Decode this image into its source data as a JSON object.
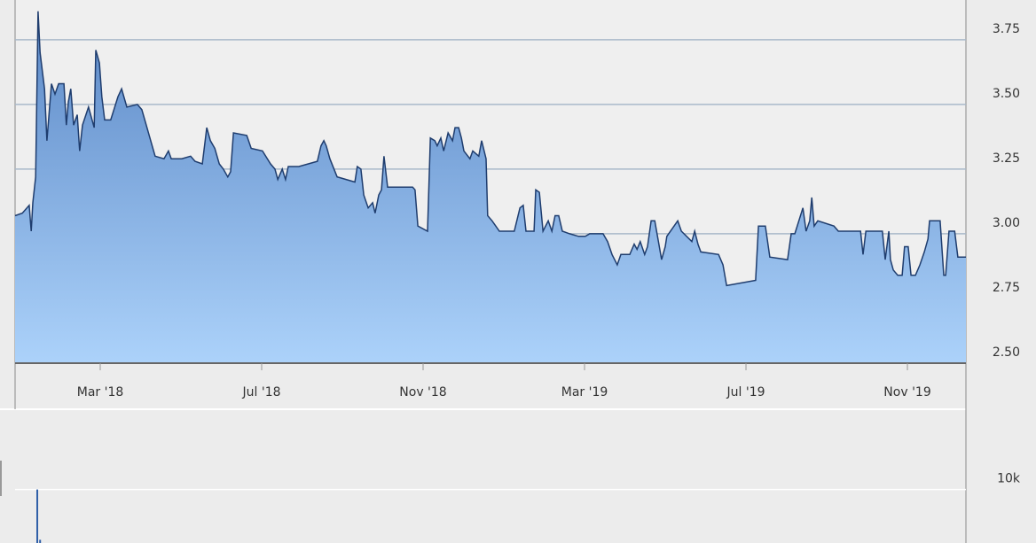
{
  "chart_data": [
    {
      "type": "area",
      "color": "#1f3d6e",
      "grid": true,
      "xlim": [
        -0.11,
        23.45
      ],
      "ylim": [
        2.5,
        3.9
      ],
      "xticks": [
        {
          "value": 2,
          "label": "Mar '18"
        },
        {
          "value": 6,
          "label": "Jul '18"
        },
        {
          "value": 10,
          "label": "Nov '18"
        },
        {
          "value": 14,
          "label": "Mar '19"
        },
        {
          "value": 18,
          "label": "Jul '19"
        },
        {
          "value": 22,
          "label": "Nov '19"
        }
      ],
      "yticks": [
        {
          "value": 2.5,
          "label": "2.50"
        },
        2.75,
        {
          "value": 3.0,
          "label": "3.00"
        },
        3.25,
        {
          "value": 3.5,
          "label": "3.50"
        },
        3.75
      ],
      "x": [
        -0.11,
        0.07,
        0.24,
        0.29,
        0.33,
        0.4,
        0.46,
        0.51,
        0.62,
        0.68,
        0.79,
        0.88,
        0.97,
        1.1,
        1.16,
        1.21,
        1.27,
        1.34,
        1.43,
        1.49,
        1.56,
        1.71,
        1.85,
        1.89,
        1.98,
        2.04,
        2.11,
        2.26,
        2.44,
        2.53,
        2.66,
        2.92,
        3.03,
        3.14,
        3.25,
        3.36,
        3.58,
        3.69,
        3.76,
        4.02,
        4.24,
        4.35,
        4.53,
        4.64,
        4.73,
        4.84,
        4.95,
        5.05,
        5.16,
        5.23,
        5.3,
        5.63,
        5.74,
        6.02,
        6.22,
        6.33,
        6.4,
        6.51,
        6.59,
        6.66,
        6.92,
        7.38,
        7.47,
        7.54,
        7.6,
        7.69,
        7.87,
        8.31,
        8.37,
        8.46,
        8.53,
        8.64,
        8.75,
        8.81,
        8.9,
        8.97,
        9.03,
        9.12,
        9.74,
        9.8,
        9.87,
        10.11,
        10.18,
        10.29,
        10.35,
        10.44,
        10.51,
        10.62,
        10.73,
        10.79,
        10.88,
        10.95,
        11.01,
        11.16,
        11.23,
        11.38,
        11.45,
        11.56,
        11.6,
        11.71,
        11.89,
        12.26,
        12.4,
        12.48,
        12.55,
        12.75,
        12.79,
        12.88,
        12.97,
        13.1,
        13.19,
        13.27,
        13.36,
        13.45,
        13.63,
        13.85,
        14.02,
        14.13,
        14.46,
        14.57,
        14.68,
        14.81,
        14.9,
        15.12,
        15.23,
        15.3,
        15.38,
        15.49,
        15.56,
        15.65,
        15.74,
        15.82,
        15.91,
        16.0,
        16.04,
        16.31,
        16.4,
        16.66,
        16.73,
        16.81,
        16.88,
        17.32,
        17.43,
        17.52,
        18.24,
        18.31,
        18.48,
        18.59,
        19.03,
        19.12,
        19.21,
        19.41,
        19.49,
        19.58,
        19.63,
        19.69,
        19.78,
        20.18,
        20.29,
        20.84,
        20.9,
        20.97,
        21.38,
        21.45,
        21.54,
        21.58,
        21.65,
        21.76,
        21.87,
        21.93,
        22.02,
        22.09,
        22.2,
        22.31,
        22.42,
        22.51,
        22.55,
        22.81,
        22.9,
        22.95,
        23.03,
        23.17,
        23.25,
        23.45
      ],
      "values": [
        3.07,
        3.08,
        3.11,
        3.01,
        3.12,
        3.22,
        3.86,
        3.7,
        3.56,
        3.36,
        3.58,
        3.54,
        3.58,
        3.58,
        3.42,
        3.51,
        3.56,
        3.42,
        3.46,
        3.32,
        3.42,
        3.49,
        3.41,
        3.71,
        3.66,
        3.53,
        3.44,
        3.44,
        3.53,
        3.56,
        3.49,
        3.5,
        3.48,
        3.42,
        3.36,
        3.3,
        3.29,
        3.32,
        3.29,
        3.29,
        3.3,
        3.28,
        3.27,
        3.41,
        3.36,
        3.33,
        3.27,
        3.25,
        3.22,
        3.24,
        3.39,
        3.38,
        3.33,
        3.32,
        3.27,
        3.25,
        3.21,
        3.25,
        3.21,
        3.26,
        3.26,
        3.28,
        3.34,
        3.36,
        3.34,
        3.29,
        3.22,
        3.2,
        3.26,
        3.25,
        3.15,
        3.1,
        3.12,
        3.08,
        3.15,
        3.17,
        3.3,
        3.18,
        3.18,
        3.17,
        3.03,
        3.01,
        3.37,
        3.36,
        3.34,
        3.37,
        3.32,
        3.39,
        3.36,
        3.41,
        3.41,
        3.37,
        3.32,
        3.29,
        3.32,
        3.3,
        3.36,
        3.29,
        3.07,
        3.05,
        3.01,
        3.01,
        3.1,
        3.11,
        3.01,
        3.01,
        3.17,
        3.16,
        3.01,
        3.05,
        3.01,
        3.07,
        3.07,
        3.01,
        3.0,
        2.99,
        2.99,
        3.0,
        3.0,
        2.97,
        2.92,
        2.88,
        2.92,
        2.92,
        2.96,
        2.94,
        2.97,
        2.92,
        2.95,
        3.05,
        3.05,
        2.98,
        2.9,
        2.95,
        2.99,
        3.05,
        3.01,
        2.97,
        3.01,
        2.96,
        2.93,
        2.92,
        2.88,
        2.8,
        2.82,
        3.03,
        3.03,
        2.91,
        2.9,
        3.0,
        3.0,
        3.1,
        3.01,
        3.05,
        3.14,
        3.03,
        3.05,
        3.03,
        3.01,
        3.01,
        2.92,
        3.01,
        3.01,
        2.9,
        3.01,
        2.9,
        2.86,
        2.84,
        2.84,
        2.95,
        2.95,
        2.84,
        2.84,
        2.88,
        2.93,
        2.98,
        3.05,
        3.05,
        2.84,
        2.84,
        3.01,
        3.01,
        2.91,
        2.91
      ]
    },
    {
      "type": "bar",
      "color": "#2f5fa8",
      "grid": true,
      "xlim": [
        -0.11,
        23.45
      ],
      "ylim": [
        0,
        25000
      ],
      "yticks": [
        {
          "value": 10000,
          "label": "10k"
        }
      ],
      "x": [
        0.44,
        0.51
      ],
      "values": [
        10000,
        600
      ]
    }
  ]
}
